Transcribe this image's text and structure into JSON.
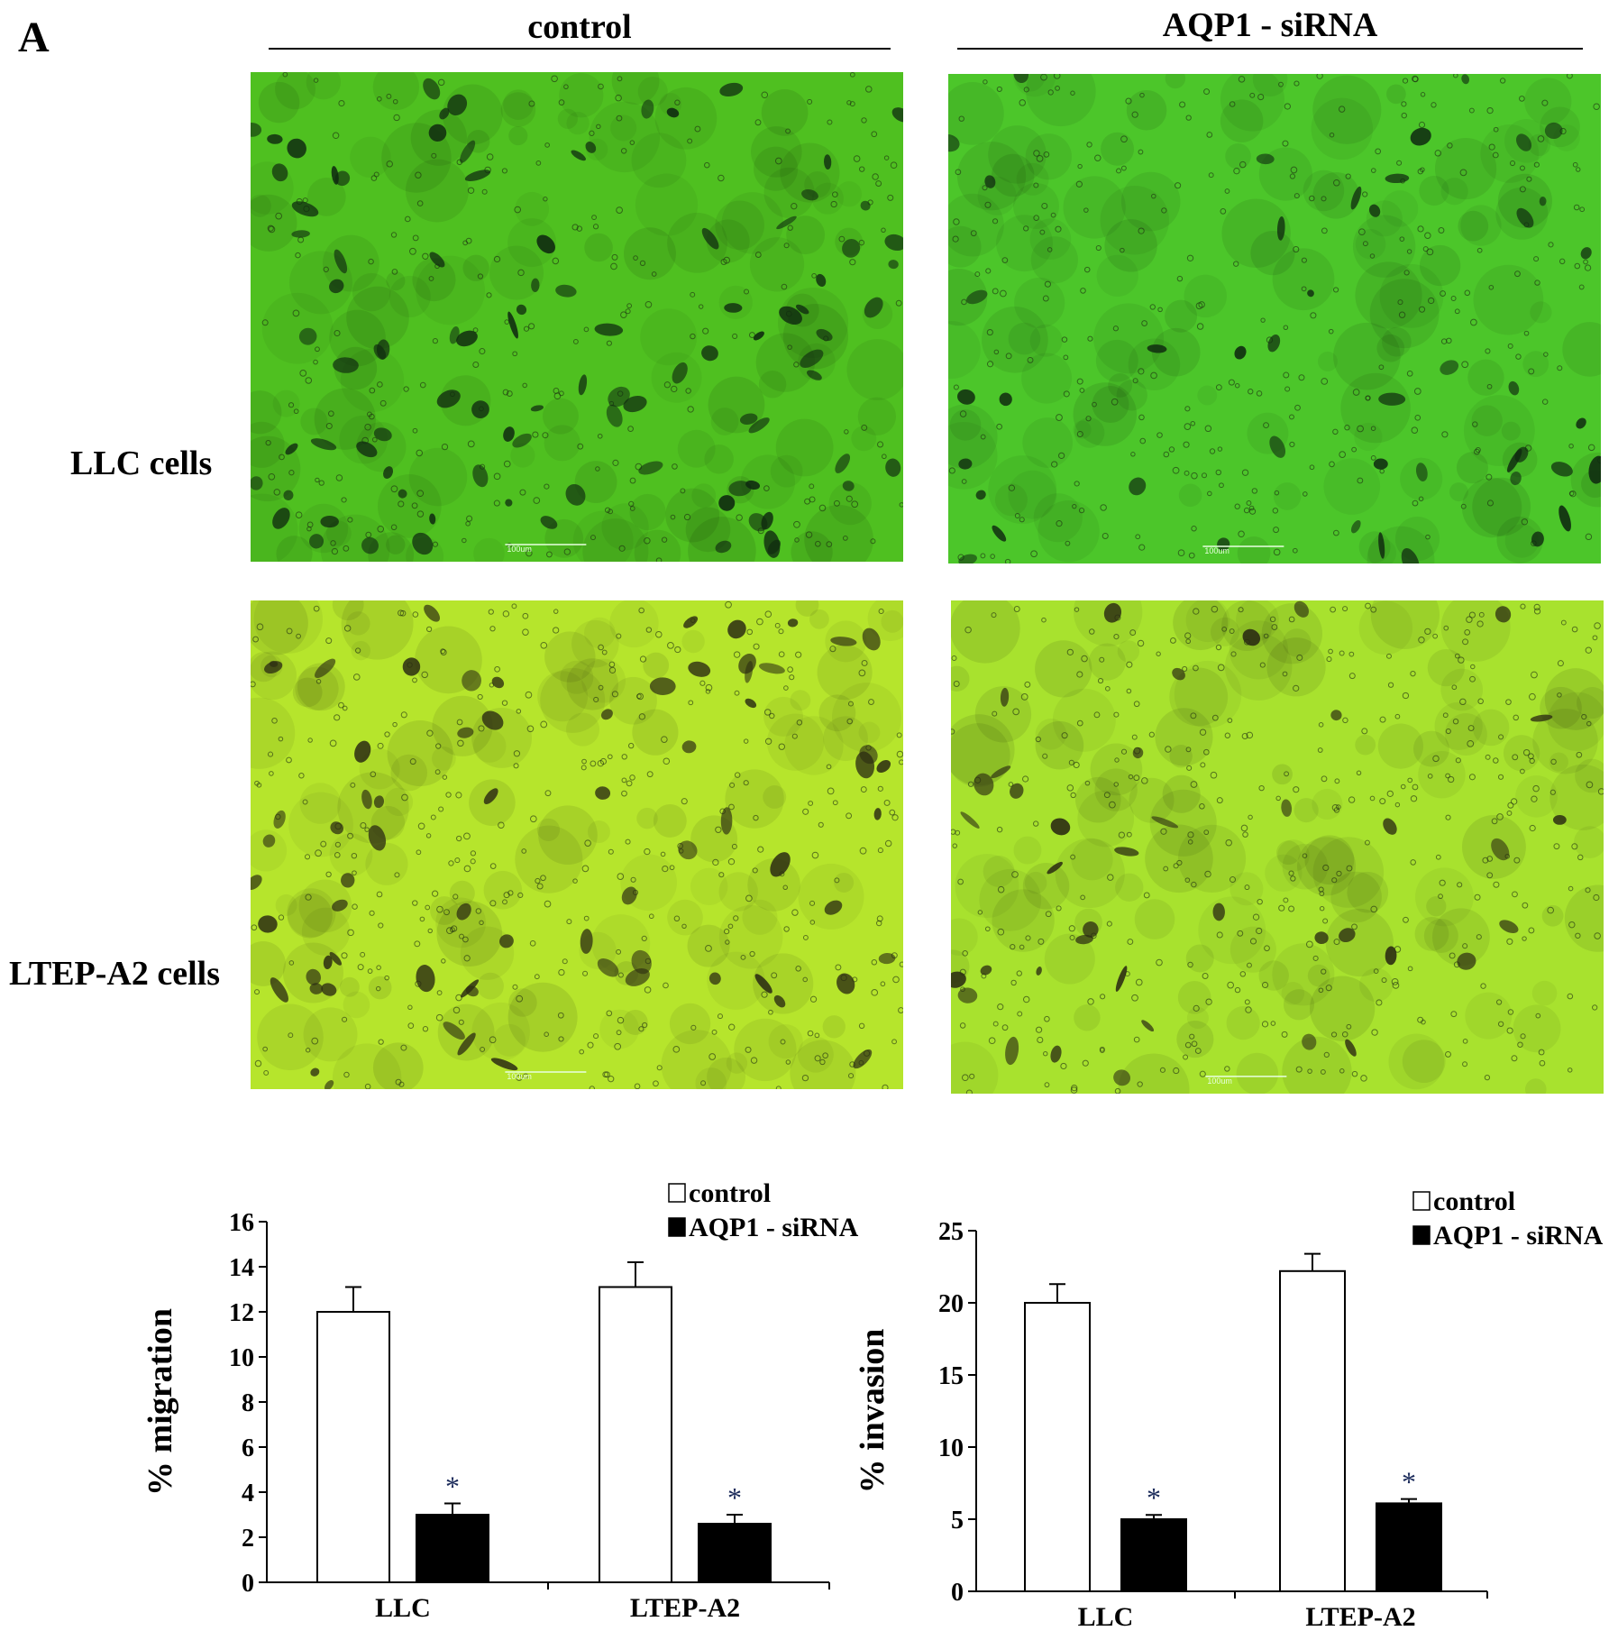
{
  "panel_label": "A",
  "columns": [
    {
      "label": "control"
    },
    {
      "label": "AQP1 - siRNA"
    }
  ],
  "rows": [
    {
      "label": "LLC cells"
    },
    {
      "label": "LTEP-A2 cells"
    }
  ],
  "micrographs": [
    {
      "row": "LLC cells",
      "column": "control",
      "scale_bar": "100um",
      "color": "#4fc020"
    },
    {
      "row": "LLC cells",
      "column": "AQP1 - siRNA",
      "scale_bar": "100um",
      "color": "#4cc62a"
    },
    {
      "row": "LTEP-A2 cells",
      "column": "control",
      "scale_bar": "100um",
      "color": "#b6e52c"
    },
    {
      "row": "LTEP-A2 cells",
      "column": "AQP1 - siRNA",
      "scale_bar": "100um",
      "color": "#a8e22e"
    }
  ],
  "colors": {
    "control": "#ffffff",
    "siRNA": "#000000",
    "stroke": "#000000"
  },
  "chart_data": [
    {
      "type": "bar",
      "categories": [
        "LLC",
        "LTEP-A2"
      ],
      "series": [
        {
          "name": "control",
          "values": [
            12.0,
            13.1
          ],
          "errors": [
            1.1,
            1.1
          ]
        },
        {
          "name": "AQP1 - siRNA",
          "values": [
            3.0,
            2.6
          ],
          "errors": [
            0.5,
            0.4
          ]
        }
      ],
      "significance": [
        "*",
        "*"
      ],
      "ylabel": "% migration",
      "xlabel": "",
      "ylim": [
        0,
        16
      ],
      "yticks": [
        0,
        2,
        4,
        6,
        8,
        10,
        12,
        14,
        16
      ],
      "legend": "top-right",
      "legend_labels": [
        "control",
        "AQP1 - siRNA"
      ]
    },
    {
      "type": "bar",
      "categories": [
        "LLC",
        "LTEP-A2"
      ],
      "series": [
        {
          "name": "control",
          "values": [
            20.0,
            22.2
          ],
          "errors": [
            1.3,
            1.2
          ]
        },
        {
          "name": "AQP1 - siRNA",
          "values": [
            5.0,
            6.1
          ],
          "errors": [
            0.3,
            0.3
          ]
        }
      ],
      "significance": [
        "*",
        "*"
      ],
      "ylabel": "% invasion",
      "xlabel": "",
      "ylim": [
        0,
        25
      ],
      "yticks": [
        0,
        5,
        10,
        15,
        20,
        25
      ],
      "legend": "top-right",
      "legend_labels": [
        "control",
        "AQP1 - siRNA"
      ]
    }
  ]
}
